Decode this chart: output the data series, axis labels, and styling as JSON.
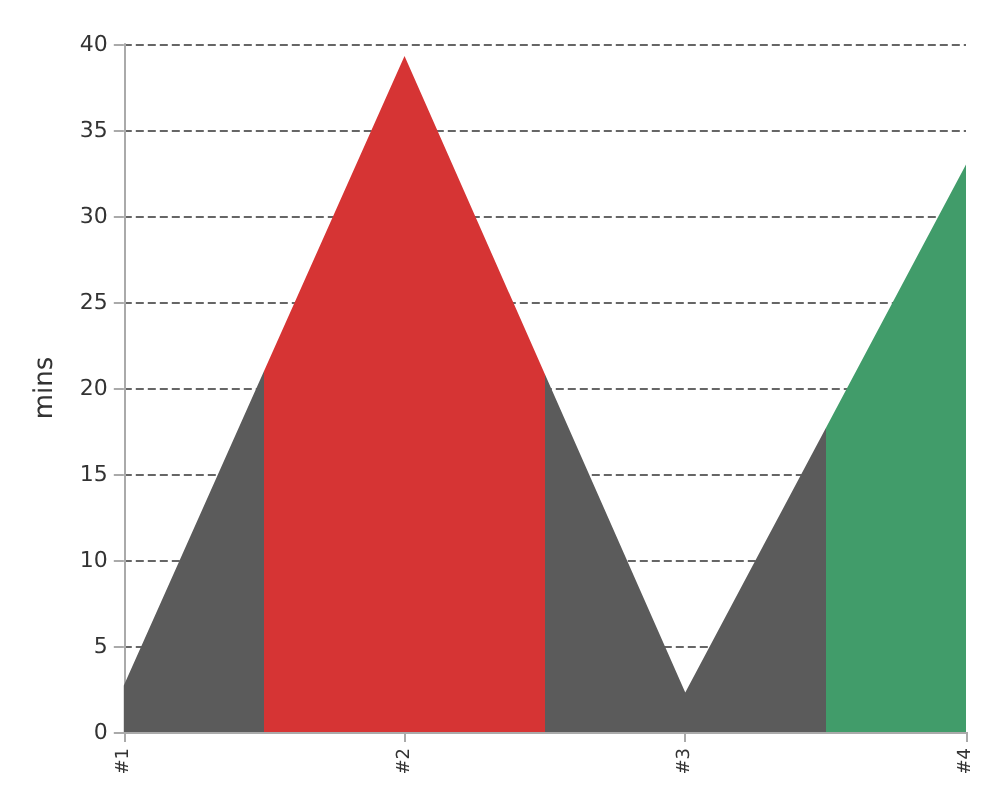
{
  "chart_data": {
    "type": "area",
    "ylabel": "mins",
    "categories": [
      "#1",
      "#2",
      "#3",
      "#4"
    ],
    "values": [
      2.7,
      39.3,
      2.3,
      33
    ],
    "colors": [
      "#5b5b5b",
      "#d63434",
      "#5b5b5b",
      "#419c6a"
    ],
    "ylim": [
      0,
      40
    ],
    "yticks": [
      0,
      5,
      10,
      15,
      20,
      25,
      30,
      35,
      40
    ],
    "grid": "y"
  }
}
